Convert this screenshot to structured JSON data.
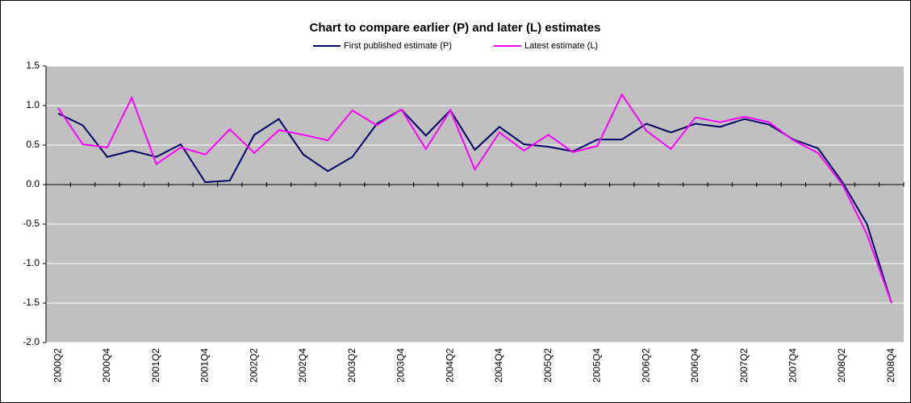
{
  "chart_data": {
    "type": "line",
    "title": "Chart to compare earlier (P) and later (L) estimates",
    "categories": [
      "2000Q2",
      null,
      "2000Q4",
      null,
      "2001Q2",
      null,
      "2001Q4",
      null,
      "2002Q2",
      null,
      "2002Q4",
      null,
      "2003Q2",
      null,
      "2003Q4",
      null,
      "2004Q2",
      null,
      "2004Q4",
      null,
      "2005Q2",
      null,
      "2005Q4",
      null,
      "2006Q2",
      null,
      "2006Q4",
      null,
      "2007Q2",
      null,
      "2007Q4",
      null,
      "2008Q2",
      null,
      "2008Q4"
    ],
    "series": [
      {
        "name": "First published estimate (P)",
        "color": "#000066",
        "values": [
          0.9,
          0.75,
          0.35,
          0.43,
          0.35,
          0.51,
          0.03,
          0.05,
          0.63,
          0.83,
          0.38,
          0.17,
          0.35,
          0.77,
          0.95,
          0.62,
          0.94,
          0.44,
          0.73,
          0.51,
          0.48,
          0.42,
          0.57,
          0.57,
          0.77,
          0.66,
          0.77,
          0.73,
          0.83,
          0.76,
          0.57,
          0.46,
          0.03,
          -0.5,
          -1.5
        ]
      },
      {
        "name": "Latest estimate (L)",
        "color": "#ff00ff",
        "values": [
          0.97,
          0.51,
          0.47,
          1.1,
          0.26,
          0.47,
          0.38,
          0.7,
          0.4,
          0.69,
          0.63,
          0.56,
          0.94,
          0.75,
          0.95,
          0.45,
          0.94,
          0.19,
          0.66,
          0.43,
          0.63,
          0.41,
          0.49,
          1.14,
          0.68,
          0.45,
          0.85,
          0.79,
          0.86,
          0.79,
          0.56,
          0.4,
          0.0,
          -0.63,
          -1.5
        ]
      }
    ],
    "ylim": [
      -2.0,
      1.5
    ],
    "yticks": [
      {
        "value": 1.5,
        "label": "1.5"
      },
      {
        "value": 1.0,
        "label": "1.0"
      },
      {
        "value": 0.5,
        "label": "0.5"
      },
      {
        "value": 0,
        "label": "0.0"
      },
      {
        "value": -0.5,
        "label": "-0.5"
      },
      {
        "value": -1.0,
        "label": "-1.0"
      },
      {
        "value": -1.5,
        "label": "-1.5"
      },
      {
        "value": -2.0,
        "label": "-2.0"
      }
    ],
    "grid": true,
    "legend": "top"
  }
}
